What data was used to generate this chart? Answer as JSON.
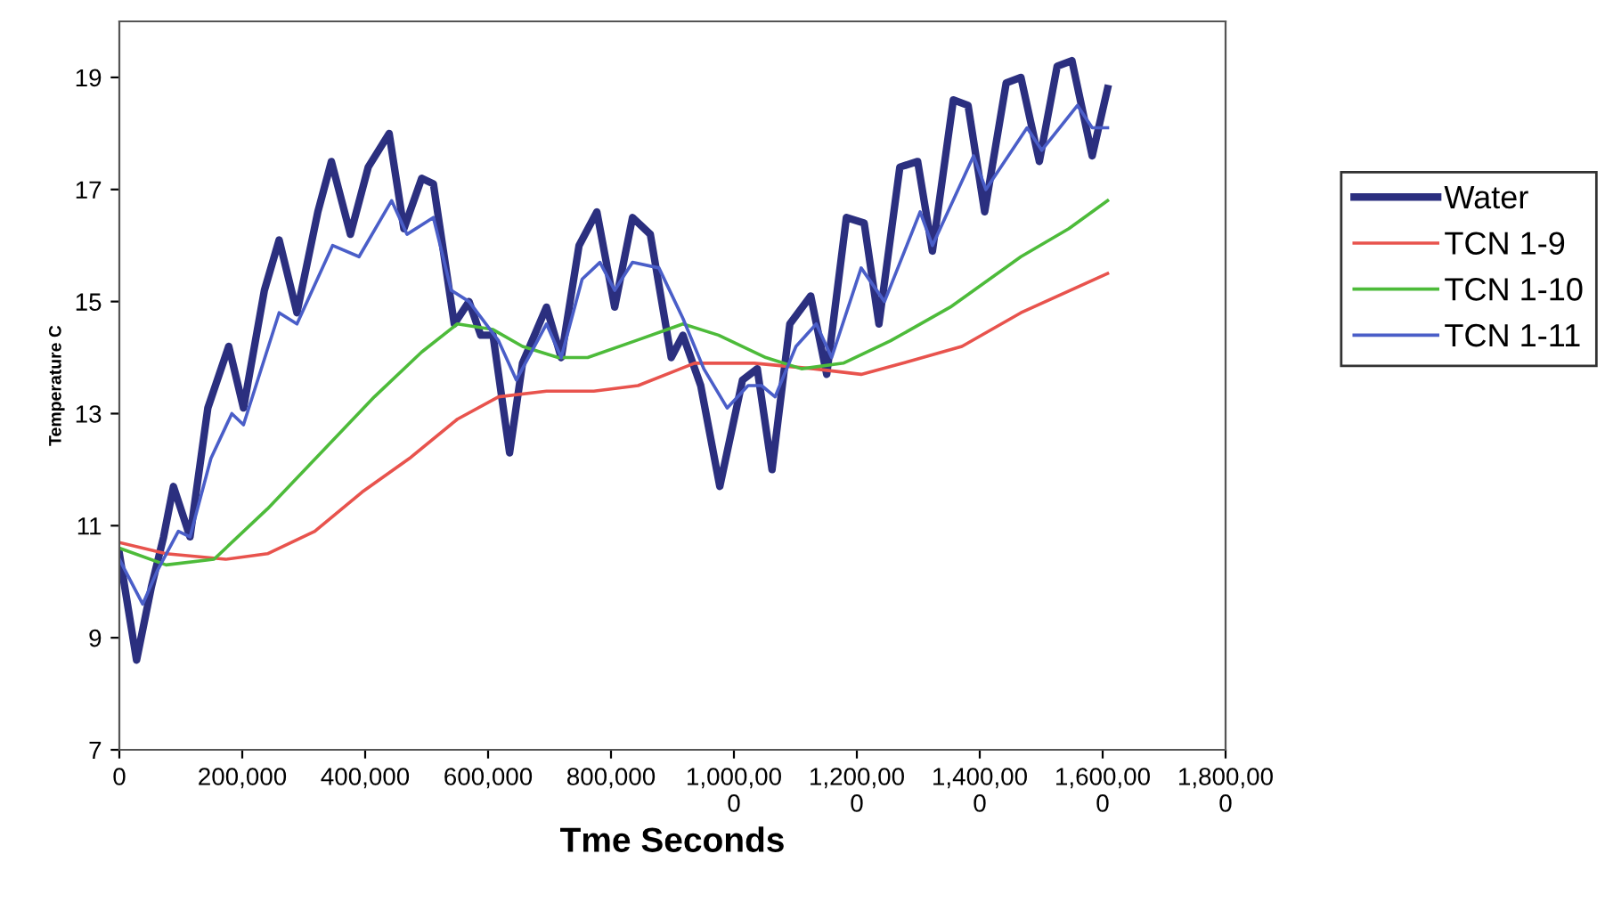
{
  "chart_data": {
    "type": "line",
    "xlabel": "Tme Seconds",
    "ylabel": "Temperature C",
    "xlim": [
      0,
      1800000
    ],
    "ylim": [
      7,
      20
    ],
    "xticks": [
      0,
      {
        "value": 200000,
        "label": "200,000"
      },
      {
        "value": 400000,
        "label": "400,000"
      },
      {
        "value": 600000,
        "label": "600,000"
      },
      {
        "value": 800000,
        "label": "800,000"
      },
      {
        "value": 1000000,
        "label": "1,000,00\n0"
      },
      {
        "value": 1200000,
        "label": "1,200,00\n0"
      },
      {
        "value": 1400000,
        "label": "1,400,00\n0"
      },
      {
        "value": 1600000,
        "label": "1,600,00\n0"
      },
      {
        "value": 1800000,
        "label": "1,800,00\n0"
      }
    ],
    "yticks": [
      7,
      9,
      11,
      13,
      15,
      17,
      19
    ],
    "grid": false,
    "legend": "right",
    "marker": "none",
    "line_style": "solid",
    "series": [
      {
        "name": "Water",
        "color": "#2b2f7f",
        "x": [
          0,
          28000,
          52000,
          72000,
          88000,
          115000,
          144000,
          178000,
          202000,
          236000,
          260000,
          289000,
          323000,
          345000,
          376000,
          405000,
          439000,
          463000,
          492000,
          511000,
          545000,
          569000,
          588000,
          608000,
          635000,
          656000,
          695000,
          719000,
          748000,
          777000,
          806000,
          835000,
          864000,
          898000,
          917000,
          946000,
          977000,
          1014000,
          1038000,
          1062000,
          1091000,
          1125000,
          1151000,
          1183000,
          1212000,
          1236000,
          1270000,
          1299000,
          1323000,
          1357000,
          1381000,
          1408000,
          1443000,
          1467000,
          1497000,
          1526000,
          1550000,
          1583000,
          1608000
        ],
        "values": [
          10.5,
          8.6,
          9.9,
          10.8,
          11.7,
          10.8,
          13.1,
          14.2,
          13.1,
          15.2,
          16.1,
          14.8,
          16.6,
          17.5,
          16.2,
          17.4,
          18.0,
          16.3,
          17.2,
          17.1,
          14.6,
          15.0,
          14.4,
          14.4,
          12.3,
          13.9,
          14.9,
          14.0,
          16.0,
          16.6,
          14.9,
          16.5,
          16.2,
          14.0,
          14.4,
          13.5,
          11.7,
          13.6,
          13.8,
          12.0,
          14.6,
          15.1,
          13.7,
          16.5,
          16.4,
          14.6,
          17.4,
          17.5,
          15.9,
          18.6,
          18.5,
          16.6,
          18.9,
          19.0,
          17.5,
          19.2,
          19.3,
          17.6,
          18.8
        ]
      },
      {
        "name": "TCN 1-9",
        "color": "#e8534d",
        "x": [
          0,
          76000,
          173000,
          241000,
          318000,
          395000,
          472000,
          550000,
          617000,
          695000,
          772000,
          844000,
          936000,
          1033000,
          1130000,
          1207000,
          1275000,
          1371000,
          1467000,
          1608000
        ],
        "values": [
          10.7,
          10.5,
          10.4,
          10.5,
          10.9,
          11.6,
          12.2,
          12.9,
          13.3,
          13.4,
          13.4,
          13.5,
          13.9,
          13.9,
          13.8,
          13.7,
          13.9,
          14.2,
          14.8,
          15.5
        ]
      },
      {
        "name": "TCN 1-10",
        "color": "#4dbb3a",
        "x": [
          0,
          76000,
          154000,
          241000,
          328000,
          415000,
          492000,
          550000,
          608000,
          656000,
          714000,
          762000,
          840000,
          917000,
          975000,
          1052000,
          1110000,
          1178000,
          1255000,
          1352000,
          1467000,
          1545000,
          1608000
        ],
        "values": [
          10.6,
          10.3,
          10.4,
          11.3,
          12.3,
          13.3,
          14.1,
          14.6,
          14.5,
          14.2,
          14.0,
          14.0,
          14.3,
          14.6,
          14.4,
          14.0,
          13.8,
          13.9,
          14.3,
          14.9,
          15.8,
          16.3,
          16.8
        ]
      },
      {
        "name": "TCN 1-11",
        "color": "#4a5ec8",
        "x": [
          0,
          38000,
          62000,
          96000,
          115000,
          149000,
          183000,
          202000,
          260000,
          289000,
          347000,
          390000,
          443000,
          468000,
          511000,
          540000,
          569000,
          617000,
          646000,
          695000,
          719000,
          753000,
          782000,
          806000,
          835000,
          878000,
          917000,
          951000,
          989000,
          1023000,
          1045000,
          1067000,
          1101000,
          1134000,
          1159000,
          1207000,
          1245000,
          1303000,
          1323000,
          1390000,
          1410000,
          1477000,
          1501000,
          1559000,
          1583000,
          1608000
        ],
        "values": [
          10.4,
          9.6,
          10.2,
          10.9,
          10.8,
          12.2,
          13.0,
          12.8,
          14.8,
          14.6,
          16.0,
          15.8,
          16.8,
          16.2,
          16.5,
          15.2,
          15.0,
          14.3,
          13.6,
          14.6,
          14.0,
          15.4,
          15.7,
          15.2,
          15.7,
          15.6,
          14.7,
          13.8,
          13.1,
          13.5,
          13.5,
          13.3,
          14.2,
          14.6,
          14.0,
          15.6,
          15.0,
          16.6,
          16.0,
          17.6,
          17.0,
          18.1,
          17.7,
          18.5,
          18.1,
          18.1
        ]
      }
    ]
  }
}
